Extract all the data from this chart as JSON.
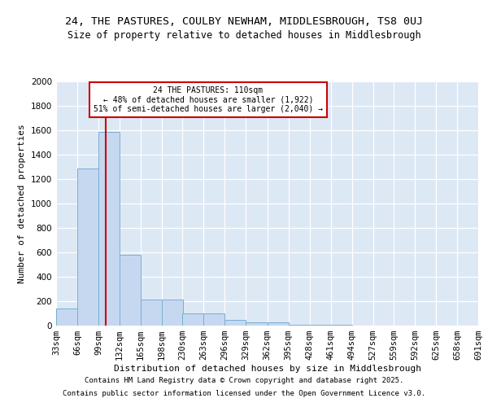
{
  "title_line1": "24, THE PASTURES, COULBY NEWHAM, MIDDLESBROUGH, TS8 0UJ",
  "title_line2": "Size of property relative to detached houses in Middlesbrough",
  "xlabel": "Distribution of detached houses by size in Middlesbrough",
  "ylabel": "Number of detached properties",
  "bin_edges": [
    33,
    66,
    99,
    132,
    165,
    198,
    230,
    263,
    296,
    329,
    362,
    395,
    428,
    461,
    494,
    527,
    559,
    592,
    625,
    658,
    691
  ],
  "bar_heights": [
    140,
    1290,
    1590,
    580,
    215,
    215,
    100,
    100,
    50,
    25,
    25,
    10,
    5,
    5,
    2,
    2,
    0,
    0,
    0,
    0
  ],
  "bar_color": "#c5d8f0",
  "bar_edge_color": "#7aadd4",
  "property_size": 110,
  "vline_color": "#cc0000",
  "annotation_title": "24 THE PASTURES: 110sqm",
  "annotation_line2": "← 48% of detached houses are smaller (1,922)",
  "annotation_line3": "51% of semi-detached houses are larger (2,040) →",
  "annotation_box_color": "#cc0000",
  "annotation_fill": "#ffffff",
  "ylim": [
    0,
    2000
  ],
  "yticks": [
    0,
    200,
    400,
    600,
    800,
    1000,
    1200,
    1400,
    1600,
    1800,
    2000
  ],
  "background_color": "#dde8f5",
  "grid_color": "#ffffff",
  "footer_line1": "Contains HM Land Registry data © Crown copyright and database right 2025.",
  "footer_line2": "Contains public sector information licensed under the Open Government Licence v3.0.",
  "title_fontsize": 9.5,
  "subtitle_fontsize": 8.5,
  "axis_label_fontsize": 8,
  "tick_fontsize": 7.5,
  "footer_fontsize": 6.5
}
